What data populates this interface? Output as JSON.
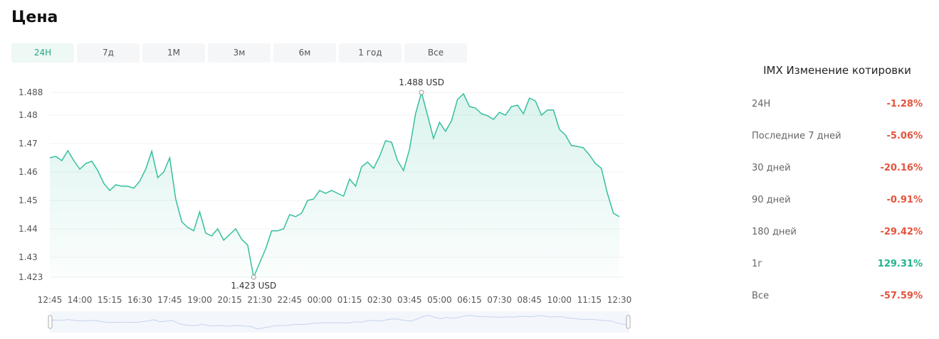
{
  "header": {
    "title": "Цена"
  },
  "tabs": [
    "24H",
    "7д",
    "1M",
    "3м",
    "6м",
    "1 год",
    "Все"
  ],
  "active_tab": 0,
  "change_table": {
    "title": "IMX Изменение котировки",
    "rows": [
      [
        "24H",
        "-1.28%"
      ],
      [
        "Последние 7 дней",
        "-5.06%"
      ],
      [
        "30 дней",
        "-20.16%"
      ],
      [
        "90 дней",
        "-0.91%"
      ],
      [
        "180 дней",
        "-29.42%"
      ],
      [
        "1г",
        "129.31%"
      ],
      [
        "Все",
        "-57.59%"
      ]
    ]
  },
  "chart_data": {
    "type": "line",
    "categories": [
      "12:45",
      null,
      null,
      null,
      null,
      "14:00",
      null,
      null,
      null,
      null,
      "15:15",
      null,
      null,
      null,
      null,
      "16:30",
      null,
      null,
      null,
      null,
      "17:45",
      null,
      null,
      null,
      null,
      "19:00",
      null,
      null,
      null,
      null,
      "20:15",
      null,
      null,
      null,
      null,
      "21:30",
      null,
      null,
      null,
      null,
      "22:45",
      null,
      null,
      null,
      null,
      "00:00",
      null,
      null,
      null,
      null,
      "01:15",
      null,
      null,
      null,
      null,
      "02:30",
      null,
      null,
      null,
      null,
      "03:45",
      null,
      null,
      null,
      null,
      "05:00",
      null,
      null,
      null,
      null,
      "06:15",
      null,
      null,
      null,
      null,
      "07:30",
      null,
      null,
      null,
      null,
      "08:45",
      null,
      null,
      null,
      null,
      "10:00",
      null,
      null,
      null,
      null,
      "11:15",
      null,
      null,
      null,
      null,
      "12:30"
    ],
    "series": [
      {
        "color": "#35bf9e",
        "values": [
          1.465,
          1.4655,
          1.464,
          1.4675,
          1.464,
          1.461,
          1.463,
          1.4638,
          1.4605,
          1.456,
          1.4535,
          1.4555,
          1.455,
          1.455,
          1.4543,
          1.4568,
          1.461,
          1.4673,
          1.458,
          1.46,
          1.465,
          1.4505,
          1.4425,
          1.4405,
          1.4393,
          1.446,
          1.4385,
          1.4375,
          1.44,
          1.436,
          1.438,
          1.44,
          1.4363,
          1.4343,
          1.423,
          1.428,
          1.433,
          1.4393,
          1.4393,
          1.44,
          1.445,
          1.4443,
          1.4455,
          1.45,
          1.4505,
          1.4535,
          1.4525,
          1.4535,
          1.4525,
          1.4515,
          1.4575,
          1.455,
          1.4618,
          1.4635,
          1.4613,
          1.4655,
          1.471,
          1.4705,
          1.464,
          1.4605,
          1.468,
          1.4805,
          1.488,
          1.48,
          1.4718,
          1.4775,
          1.4743,
          1.478,
          1.4855,
          1.4875,
          1.483,
          1.4825,
          1.4805,
          1.4798,
          1.4785,
          1.481,
          1.48,
          1.483,
          1.4835,
          1.4805,
          1.486,
          1.485,
          1.48,
          1.4818,
          1.4818,
          1.475,
          1.473,
          1.4693,
          1.469,
          1.4685,
          1.466,
          1.463,
          1.4613,
          1.4525,
          1.4455,
          1.4443
        ],
        "value_labels": [
          null,
          null,
          null,
          null,
          null,
          null,
          null,
          null,
          null,
          null,
          null,
          null,
          null,
          null,
          null,
          null,
          null,
          null,
          null,
          null,
          null,
          null,
          null,
          null,
          null,
          null,
          null,
          null,
          null,
          null,
          null,
          null,
          null,
          null,
          "1.423 USD",
          null,
          null,
          null,
          null,
          null,
          null,
          null,
          null,
          null,
          null,
          null,
          null,
          null,
          null,
          null,
          null,
          null,
          null,
          null,
          null,
          null,
          null,
          null,
          null,
          null,
          null,
          null,
          "1.488 USD",
          null,
          null,
          null,
          null,
          null,
          null,
          null,
          null,
          null,
          null,
          null,
          null,
          null,
          null,
          null,
          null,
          null,
          null,
          null,
          null,
          null,
          null,
          null,
          null,
          null,
          null,
          null,
          null,
          null,
          null,
          null,
          null,
          null
        ]
      }
    ],
    "ylim": [
      1.4225,
      1.4905
    ],
    "yticks": [
      1.423,
      1.43,
      1.44,
      1.45,
      1.46,
      1.47,
      1.48,
      1.488
    ],
    "grid": true
  }
}
